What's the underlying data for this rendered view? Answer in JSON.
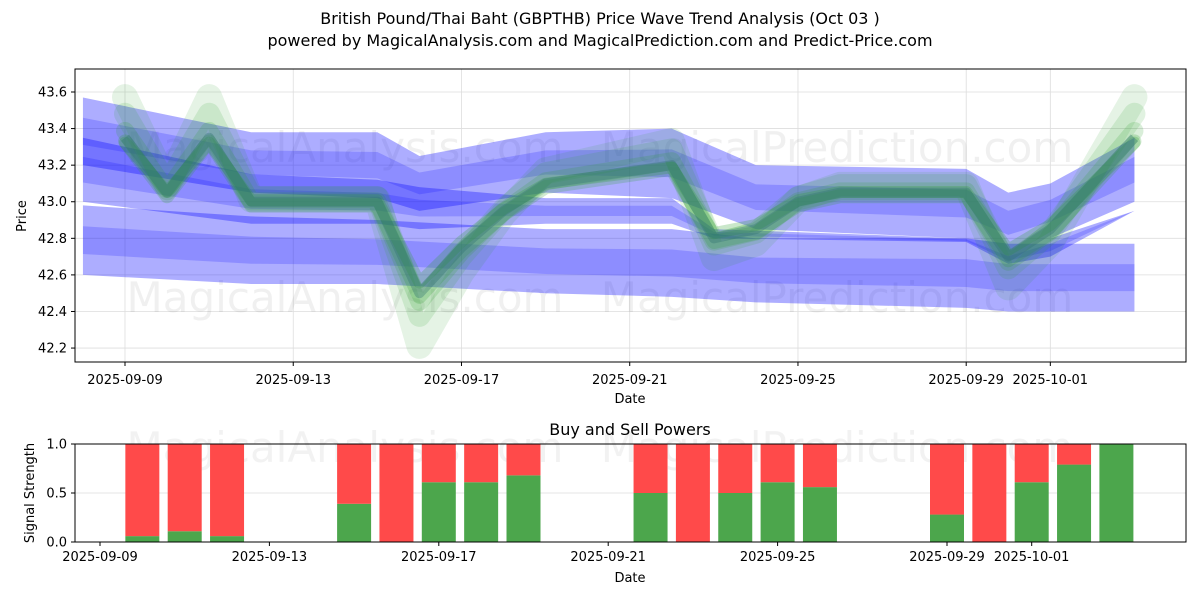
{
  "header": {
    "title": "British Pound/Thai Baht (GBPTHB) Price Wave Trend Analysis (Oct 03 )",
    "subtitle": "powered by MagicalAnalysis.com and MagicalPrediction.com and Predict-Price.com"
  },
  "watermarks": [
    "MagicalAnalysis.com",
    "MagicalPrediction.com"
  ],
  "colors": {
    "band_blue": "#0000ff",
    "wave_green": "#2ca02c",
    "buy": "#4ca64c",
    "sell": "#ff4a4a",
    "grid": "#dddddd"
  },
  "chart_data": [
    {
      "type": "area",
      "title": "",
      "xlabel": "Date",
      "ylabel": "Price",
      "ylim": [
        42.12,
        43.75
      ],
      "yticks": [
        42.2,
        42.4,
        42.6,
        42.8,
        43.0,
        43.2,
        43.4,
        43.6
      ],
      "ytick_labels": [
        "42.2",
        "42.4",
        "42.6",
        "42.8",
        "43.0",
        "43.2",
        "43.4",
        "43.6"
      ],
      "xlim": [
        "2025-09-08",
        "2025-10-04"
      ],
      "xticks": [
        "2025-09-09",
        "2025-09-13",
        "2025-09-17",
        "2025-09-21",
        "2025-09-25",
        "2025-09-29",
        "2025-10-01"
      ],
      "grid": true,
      "wave": {
        "name": "Price wave",
        "dates": [
          "2025-09-09",
          "2025-09-10",
          "2025-09-11",
          "2025-09-12",
          "2025-09-15",
          "2025-09-16",
          "2025-09-17",
          "2025-09-18",
          "2025-09-19",
          "2025-09-22",
          "2025-09-23",
          "2025-09-24",
          "2025-09-25",
          "2025-09-26",
          "2025-09-29",
          "2025-09-30",
          "2025-10-01",
          "2025-10-02",
          "2025-10-03"
        ],
        "values": [
          43.35,
          43.05,
          43.35,
          43.0,
          43.0,
          42.5,
          42.75,
          42.95,
          43.1,
          43.2,
          42.8,
          42.85,
          43.0,
          43.05,
          43.05,
          42.7,
          42.85,
          43.1,
          43.35
        ]
      },
      "bands": [
        {
          "name": "upper-band",
          "dates": [
            "2025-09-08",
            "2025-09-12",
            "2025-09-15",
            "2025-09-16",
            "2025-09-19",
            "2025-09-22",
            "2025-09-24",
            "2025-09-29",
            "2025-09-30",
            "2025-10-01",
            "2025-10-03"
          ],
          "upper": [
            43.57,
            43.38,
            43.38,
            43.25,
            43.38,
            43.4,
            43.2,
            43.18,
            43.05,
            43.1,
            43.35
          ],
          "lower": [
            43.2,
            43.05,
            43.02,
            42.95,
            43.05,
            43.02,
            42.85,
            42.8,
            42.72,
            42.8,
            43.0
          ]
        },
        {
          "name": "mid-band",
          "dates": [
            "2025-09-08",
            "2025-09-12",
            "2025-09-15",
            "2025-09-16",
            "2025-09-19",
            "2025-09-22",
            "2025-09-23",
            "2025-09-29",
            "2025-09-30",
            "2025-10-01",
            "2025-10-03"
          ],
          "upper": [
            43.35,
            43.15,
            43.12,
            43.08,
            43.02,
            43.02,
            42.85,
            42.8,
            42.72,
            42.8,
            42.95
          ],
          "lower": [
            43.0,
            42.88,
            42.88,
            42.85,
            42.88,
            42.88,
            42.8,
            42.78,
            42.66,
            42.7,
            42.95
          ]
        },
        {
          "name": "lower-band",
          "dates": [
            "2025-09-08",
            "2025-09-12",
            "2025-09-15",
            "2025-09-19",
            "2025-09-22",
            "2025-09-24",
            "2025-09-29",
            "2025-09-30",
            "2025-10-03"
          ],
          "upper": [
            42.98,
            42.92,
            42.9,
            42.85,
            42.85,
            42.8,
            42.8,
            42.77,
            42.77
          ],
          "lower": [
            42.6,
            42.55,
            42.55,
            42.5,
            42.48,
            42.45,
            42.42,
            42.4,
            42.4
          ]
        }
      ]
    },
    {
      "type": "bar",
      "title": "Buy and Sell Powers",
      "xlabel": "Date",
      "ylabel": "Signal Strength",
      "ylim": [
        0,
        1.0
      ],
      "yticks": [
        0.0,
        0.5,
        1.0
      ],
      "ytick_labels": [
        "0.0",
        "0.5",
        "1.0"
      ],
      "xlim": [
        "2025-09-08",
        "2025-10-04"
      ],
      "xticks": [
        "2025-09-09",
        "2025-09-13",
        "2025-09-17",
        "2025-09-21",
        "2025-09-25",
        "2025-09-29",
        "2025-10-01"
      ],
      "grid": true,
      "categories": [
        "2025-09-10",
        "2025-09-11",
        "2025-09-12",
        "2025-09-15",
        "2025-09-16",
        "2025-09-17",
        "2025-09-18",
        "2025-09-19",
        "2025-09-22",
        "2025-09-23",
        "2025-09-24",
        "2025-09-25",
        "2025-09-26",
        "2025-09-29",
        "2025-09-30",
        "2025-10-01",
        "2025-10-02",
        "2025-10-03"
      ],
      "series": [
        {
          "name": "Buy",
          "values": [
            0.06,
            0.11,
            0.06,
            0.39,
            0.0,
            0.61,
            0.61,
            0.68,
            0.5,
            0.0,
            0.5,
            0.61,
            0.56,
            0.28,
            0.0,
            0.61,
            0.79,
            1.0
          ]
        },
        {
          "name": "Sell",
          "values": [
            0.94,
            0.89,
            0.94,
            0.61,
            1.0,
            0.39,
            0.39,
            0.32,
            0.5,
            1.0,
            0.5,
            0.39,
            0.44,
            0.72,
            1.0,
            0.39,
            0.21,
            0.0
          ]
        }
      ]
    }
  ]
}
